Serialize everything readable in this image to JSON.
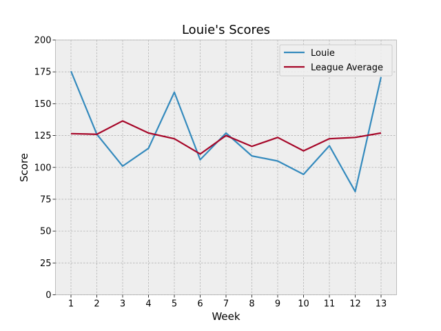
{
  "chart_data": {
    "type": "line",
    "title": "Louie's Scores",
    "xlabel": "Week",
    "ylabel": "Score",
    "x": [
      1,
      2,
      3,
      4,
      5,
      6,
      7,
      8,
      9,
      10,
      11,
      12,
      13
    ],
    "ylim": [
      0,
      200
    ],
    "yticks": [
      0,
      25,
      50,
      75,
      100,
      125,
      150,
      175,
      200
    ],
    "xlim": [
      0.4,
      13.6
    ],
    "grid": true,
    "legend_position": "top-right",
    "series": [
      {
        "name": "Louie",
        "color": "#348abd",
        "values": [
          175.5,
          126,
          101,
          115,
          159,
          106,
          127,
          109,
          105,
          94.5,
          117,
          81,
          171
        ]
      },
      {
        "name": "League Average",
        "color": "#a60628",
        "values": [
          126.5,
          126,
          136.5,
          127,
          122.5,
          110.5,
          125,
          116.5,
          123.5,
          113,
          122.5,
          123.5,
          127
        ]
      }
    ]
  }
}
